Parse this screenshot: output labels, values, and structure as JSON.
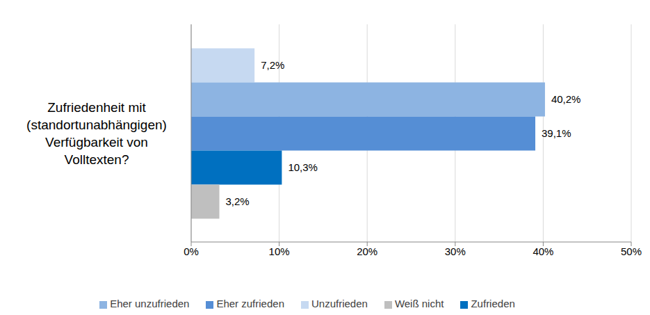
{
  "chart_data": {
    "type": "bar",
    "orientation": "horizontal",
    "categories": [
      "Zufriedenheit mit (standortunabhängigen) Verfügbarkeit von Volltexten?"
    ],
    "series": [
      {
        "name": "Unzufrieden",
        "color": "#c6d9f1",
        "values": [
          7.2
        ],
        "value_labels": [
          "7,2%"
        ]
      },
      {
        "name": "Eher unzufrieden",
        "color": "#8db4e2",
        "values": [
          40.2
        ],
        "value_labels": [
          "40,2%"
        ]
      },
      {
        "name": "Eher zufrieden",
        "color": "#558ed5",
        "values": [
          39.1
        ],
        "value_labels": [
          "39,1%"
        ]
      },
      {
        "name": "Zufrieden",
        "color": "#0070c0",
        "values": [
          10.3
        ],
        "value_labels": [
          "10,3%"
        ]
      },
      {
        "name": "Weiß nicht",
        "color": "#bfbfbf",
        "values": [
          3.2
        ],
        "value_labels": [
          "3,2%"
        ]
      }
    ],
    "xlim": [
      0,
      50
    ],
    "xticks": [
      {
        "value": 0,
        "label": "0%"
      },
      {
        "value": 10,
        "label": "10%"
      },
      {
        "value": 20,
        "label": "20%"
      },
      {
        "value": 30,
        "label": "30%"
      },
      {
        "value": 40,
        "label": "40%"
      },
      {
        "value": 50,
        "label": "50%"
      }
    ],
    "grid": true,
    "legend": "bottom",
    "data_labels": true
  }
}
